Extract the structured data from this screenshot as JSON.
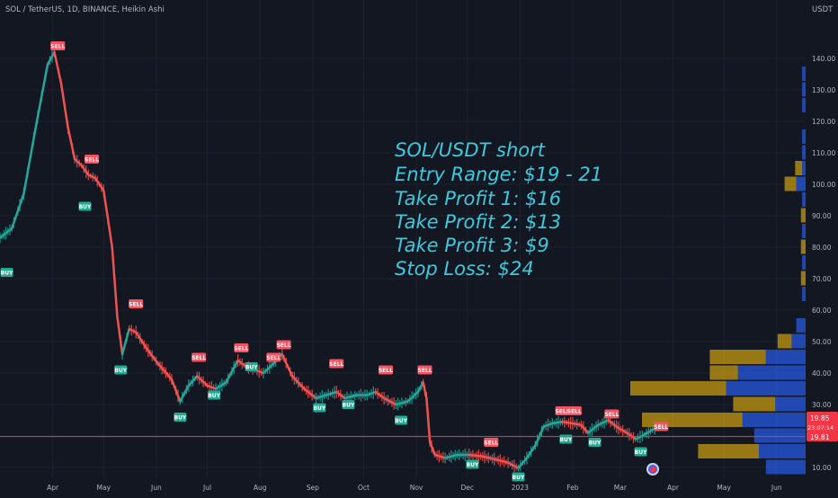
{
  "header": {
    "title": "SOL / TetherUS, 1D, BINANCE, Heikin Ashi",
    "currency": "USDT"
  },
  "price_labels": {
    "last": "19.85",
    "countdown": "23:07:14",
    "line": "19.81"
  },
  "note": {
    "lines": [
      "SOL/USDT short",
      "Entry Range: $19 - 21",
      "Take Profit 1: $16",
      "Take Profit 2: $13",
      "Take Profit 3: $9",
      "Stop Loss: $24"
    ],
    "color": "#3ec9dc"
  },
  "colors": {
    "background": "#131722",
    "grid": "#1e222d",
    "text": "#b2b5be",
    "up": "#26a69a",
    "down": "#ef5350",
    "price_line": "#f23645",
    "sell_badge": "#f7525f",
    "buy_badge": "#22ab94",
    "vp_up": "#2962ff",
    "vp_down": "#f0b90b"
  },
  "chart_data": {
    "type": "candlestick",
    "symbol": "SOL / TetherUS",
    "interval": "1D",
    "exchange": "BINANCE",
    "chart_style": "Heikin Ashi",
    "y_axis": {
      "label": "USDT",
      "ticks": [
        10,
        20,
        30,
        40,
        50,
        60,
        70,
        80,
        90,
        100,
        110,
        120,
        130,
        140
      ],
      "range": [
        5,
        148
      ]
    },
    "x_axis": {
      "ticks": [
        "Apr",
        "May",
        "Jun",
        "Jul",
        "Aug",
        "Sep",
        "Oct",
        "Nov",
        "Dec",
        "2023",
        "Feb",
        "Mar",
        "Apr",
        "May",
        "Jun"
      ]
    },
    "grid": true,
    "price_path": [
      [
        "2022-03-01",
        83
      ],
      [
        "2022-03-08",
        86
      ],
      [
        "2022-03-15",
        97
      ],
      [
        "2022-03-22",
        118
      ],
      [
        "2022-03-29",
        138
      ],
      [
        "2022-04-02",
        142
      ],
      [
        "2022-04-06",
        132
      ],
      [
        "2022-04-10",
        118
      ],
      [
        "2022-04-14",
        108
      ],
      [
        "2022-04-18",
        106
      ],
      [
        "2022-04-22",
        103
      ],
      [
        "2022-04-26",
        102
      ],
      [
        "2022-05-01",
        98
      ],
      [
        "2022-05-06",
        80
      ],
      [
        "2022-05-09",
        58
      ],
      [
        "2022-05-12",
        46
      ],
      [
        "2022-05-16",
        54
      ],
      [
        "2022-05-20",
        53
      ],
      [
        "2022-05-26",
        48
      ],
      [
        "2022-06-02",
        43
      ],
      [
        "2022-06-10",
        38
      ],
      [
        "2022-06-15",
        31
      ],
      [
        "2022-06-20",
        36
      ],
      [
        "2022-06-25",
        39
      ],
      [
        "2022-07-01",
        36
      ],
      [
        "2022-07-06",
        35
      ],
      [
        "2022-07-12",
        37
      ],
      [
        "2022-07-19",
        44
      ],
      [
        "2022-07-24",
        42
      ],
      [
        "2022-07-29",
        41
      ],
      [
        "2022-08-03",
        40
      ],
      [
        "2022-08-09",
        43
      ],
      [
        "2022-08-14",
        46
      ],
      [
        "2022-08-20",
        39
      ],
      [
        "2022-08-27",
        35
      ],
      [
        "2022-09-03",
        32
      ],
      [
        "2022-09-09",
        33
      ],
      [
        "2022-09-15",
        34
      ],
      [
        "2022-09-20",
        32
      ],
      [
        "2022-09-27",
        33
      ],
      [
        "2022-10-03",
        33
      ],
      [
        "2022-10-08",
        34
      ],
      [
        "2022-10-13",
        32
      ],
      [
        "2022-10-20",
        30
      ],
      [
        "2022-10-27",
        31
      ],
      [
        "2022-11-02",
        34
      ],
      [
        "2022-11-05",
        37
      ],
      [
        "2022-11-07",
        32
      ],
      [
        "2022-11-09",
        18
      ],
      [
        "2022-11-12",
        14
      ],
      [
        "2022-11-18",
        13
      ],
      [
        "2022-11-25",
        14
      ],
      [
        "2022-12-02",
        14
      ],
      [
        "2022-12-10",
        13.5
      ],
      [
        "2022-12-18",
        12.5
      ],
      [
        "2022-12-25",
        11.5
      ],
      [
        "2022-12-31",
        9.8
      ],
      [
        "2023-01-05",
        13
      ],
      [
        "2023-01-10",
        17
      ],
      [
        "2023-01-15",
        23
      ],
      [
        "2023-01-20",
        24
      ],
      [
        "2023-01-26",
        24.5
      ],
      [
        "2023-02-01",
        24
      ],
      [
        "2023-02-06",
        23.5
      ],
      [
        "2023-02-10",
        21
      ],
      [
        "2023-02-16",
        23.5
      ],
      [
        "2023-02-22",
        25
      ],
      [
        "2023-02-28",
        22.5
      ],
      [
        "2023-03-05",
        21
      ],
      [
        "2023-03-10",
        19
      ],
      [
        "2023-03-14",
        20
      ],
      [
        "2023-03-20",
        22
      ],
      [
        "2023-03-24",
        22.5
      ]
    ],
    "signals": [
      {
        "type": "SELL",
        "date": "2022-04-04",
        "price": 144
      },
      {
        "type": "BUY",
        "date": "2022-03-05",
        "price": 72
      },
      {
        "type": "SELL",
        "date": "2022-04-24",
        "price": 108
      },
      {
        "type": "BUY",
        "date": "2022-04-20",
        "price": 93
      },
      {
        "type": "SELL",
        "date": "2022-05-20",
        "price": 62
      },
      {
        "type": "BUY",
        "date": "2022-05-11",
        "price": 41
      },
      {
        "type": "BUY",
        "date": "2022-06-15",
        "price": 26
      },
      {
        "type": "SELL",
        "date": "2022-06-26",
        "price": 45
      },
      {
        "type": "BUY",
        "date": "2022-07-05",
        "price": 33
      },
      {
        "type": "SELL",
        "date": "2022-07-21",
        "price": 48
      },
      {
        "type": "BUY",
        "date": "2022-07-27",
        "price": 42
      },
      {
        "type": "SELL",
        "date": "2022-08-09",
        "price": 45
      },
      {
        "type": "SELL",
        "date": "2022-08-15",
        "price": 49
      },
      {
        "type": "SELL",
        "date": "2022-09-15",
        "price": 43
      },
      {
        "type": "BUY",
        "date": "2022-09-05",
        "price": 29
      },
      {
        "type": "BUY",
        "date": "2022-09-22",
        "price": 30
      },
      {
        "type": "SELL",
        "date": "2022-10-14",
        "price": 41
      },
      {
        "type": "BUY",
        "date": "2022-10-23",
        "price": 25
      },
      {
        "type": "SELL",
        "date": "2022-11-06",
        "price": 41
      },
      {
        "type": "SELL",
        "date": "2022-12-15",
        "price": 18
      },
      {
        "type": "BUY",
        "date": "2022-12-04",
        "price": 11
      },
      {
        "type": "BUY",
        "date": "2022-12-31",
        "price": 7
      },
      {
        "type": "SELL",
        "date": "2023-01-26",
        "price": 28
      },
      {
        "type": "SELL",
        "date": "2023-02-02",
        "price": 28
      },
      {
        "type": "BUY",
        "date": "2023-01-28",
        "price": 19
      },
      {
        "type": "BUY",
        "date": "2023-02-14",
        "price": 18
      },
      {
        "type": "SELL",
        "date": "2023-02-24",
        "price": 27
      },
      {
        "type": "BUY",
        "date": "2023-03-13",
        "price": 15
      },
      {
        "type": "SELL",
        "date": "2023-03-25",
        "price": 23
      }
    ],
    "horizontal_line": {
      "price": 19.81
    },
    "volume_profile": [
      {
        "price": 10,
        "up": 0.17,
        "down": 0.0
      },
      {
        "price": 15,
        "up": 0.2,
        "down": 0.26
      },
      {
        "price": 20,
        "up": 0.22,
        "down": 0.0
      },
      {
        "price": 25,
        "up": 0.27,
        "down": 0.43
      },
      {
        "price": 30,
        "up": 0.13,
        "down": 0.18
      },
      {
        "price": 35,
        "up": 0.34,
        "down": 0.41
      },
      {
        "price": 40,
        "up": 0.29,
        "down": 0.12
      },
      {
        "price": 45,
        "up": 0.17,
        "down": 0.24
      },
      {
        "price": 50,
        "up": 0.06,
        "down": 0.06
      },
      {
        "price": 55,
        "up": 0.04,
        "down": 0.0
      },
      {
        "price": 65,
        "up": 0.015,
        "down": 0.0
      },
      {
        "price": 70,
        "up": 0.0,
        "down": 0.02
      },
      {
        "price": 75,
        "up": 0.015,
        "down": 0.0
      },
      {
        "price": 80,
        "up": 0.0,
        "down": 0.02
      },
      {
        "price": 85,
        "up": 0.015,
        "down": 0.0
      },
      {
        "price": 90,
        "up": 0.0,
        "down": 0.02
      },
      {
        "price": 95,
        "up": 0.015,
        "down": 0.0
      },
      {
        "price": 100,
        "up": 0.04,
        "down": 0.05
      },
      {
        "price": 105,
        "up": 0.015,
        "down": 0.03
      },
      {
        "price": 110,
        "up": 0.015,
        "down": 0.0
      },
      {
        "price": 115,
        "up": 0.015,
        "down": 0.0
      },
      {
        "price": 125,
        "up": 0.015,
        "down": 0.0
      },
      {
        "price": 130,
        "up": 0.015,
        "down": 0.0
      },
      {
        "price": 135,
        "up": 0.015,
        "down": 0.0
      }
    ]
  }
}
